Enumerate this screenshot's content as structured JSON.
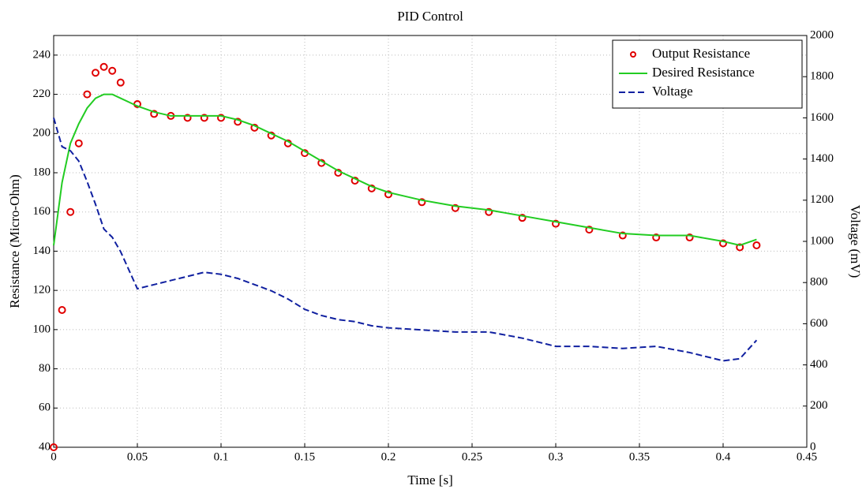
{
  "chart_data": {
    "type": "line",
    "title": "PID Control",
    "x_label": "Time [s]",
    "y_label": "Resistance (Micro-Ohm)",
    "y2_label": "Voltage (mV)",
    "x": [
      0,
      0.005,
      0.01,
      0.015,
      0.02,
      0.025,
      0.03,
      0.035,
      0.04,
      0.05,
      0.06,
      0.07,
      0.08,
      0.09,
      0.1,
      0.11,
      0.12,
      0.13,
      0.14,
      0.15,
      0.16,
      0.17,
      0.18,
      0.19,
      0.2,
      0.22,
      0.24,
      0.26,
      0.28,
      0.3,
      0.32,
      0.34,
      0.36,
      0.38,
      0.4,
      0.41,
      0.42
    ],
    "series": [
      {
        "name": "Output Resistance",
        "color": "#e00000",
        "line_style": "none",
        "marker": "circle",
        "values": [
          40,
          110,
          160,
          195,
          220,
          231,
          234,
          232,
          226,
          215,
          210,
          209,
          208,
          208,
          208,
          206,
          203,
          199,
          195,
          190,
          185,
          180,
          176,
          172,
          169,
          165,
          162,
          160,
          157,
          154,
          151,
          148,
          147,
          147,
          144,
          142,
          143
        ]
      },
      {
        "name": "Desired Resistance",
        "color": "#22cc22",
        "line_style": "solid",
        "marker": null,
        "values": [
          143,
          175,
          195,
          205,
          213,
          218,
          220,
          220,
          218,
          214,
          211,
          209,
          209,
          209,
          209,
          207,
          204,
          200,
          196,
          191,
          186,
          181,
          177,
          173,
          170,
          166,
          163,
          161,
          158,
          155,
          152,
          149,
          148,
          148,
          145,
          143,
          146
        ]
      },
      {
        "name": "Voltage",
        "color": "#1020a0",
        "line_style": "dashed",
        "marker": null,
        "axis": "y2",
        "values": [
          1600,
          1460,
          1440,
          1390,
          1290,
          1180,
          1060,
          1020,
          950,
          770,
          790,
          810,
          830,
          850,
          840,
          820,
          790,
          760,
          720,
          670,
          640,
          620,
          610,
          590,
          580,
          570,
          560,
          560,
          530,
          490,
          490,
          480,
          490,
          460,
          420,
          430,
          520
        ]
      }
    ],
    "xlim": [
      0,
      0.45
    ],
    "xticks": [
      0,
      0.05,
      0.1,
      0.15,
      0.2,
      0.25,
      0.3,
      0.35,
      0.4,
      0.45
    ],
    "ylim": [
      40,
      250
    ],
    "yticks": [
      40,
      60,
      80,
      100,
      120,
      140,
      160,
      180,
      200,
      220,
      240
    ],
    "y2lim": [
      0,
      2000
    ],
    "y2ticks": [
      0,
      200,
      400,
      600,
      800,
      1000,
      1200,
      1400,
      1600,
      1800,
      2000
    ],
    "grid": true,
    "legend": "upper right"
  }
}
